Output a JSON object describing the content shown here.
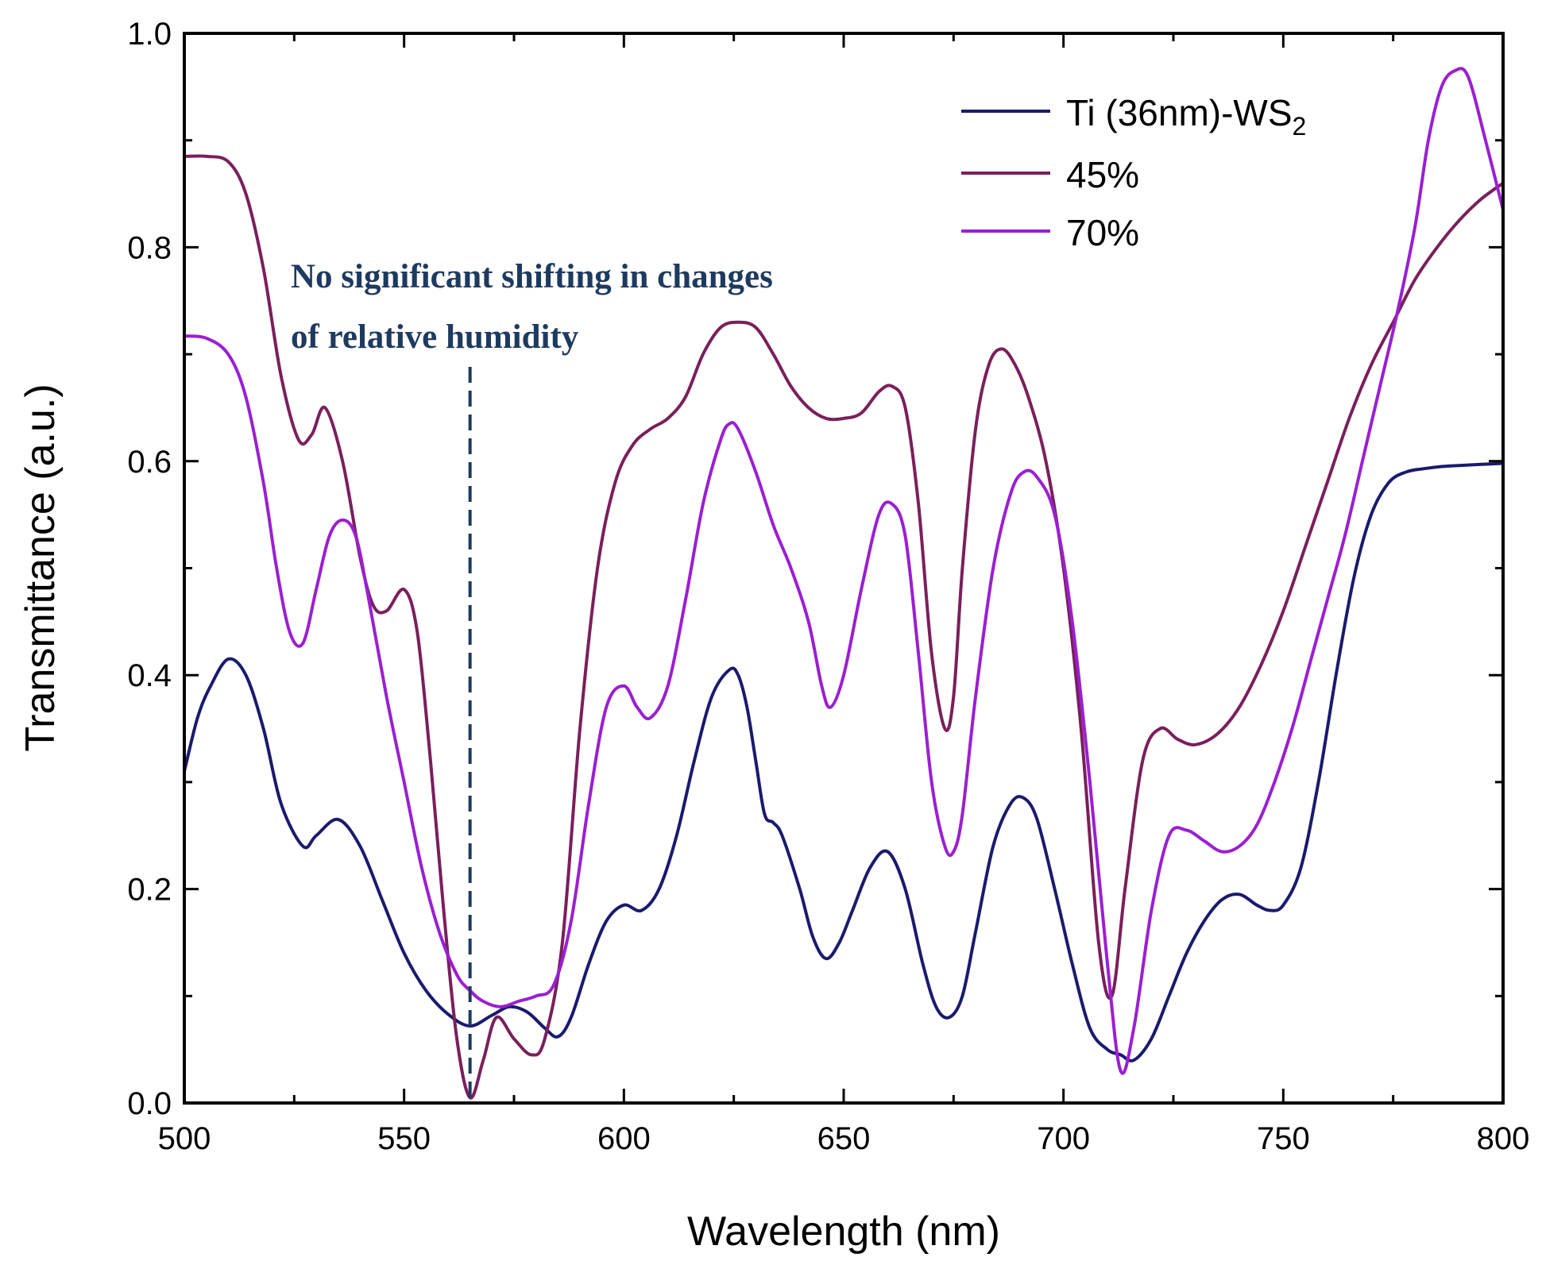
{
  "chart_data": {
    "type": "line",
    "xlabel": "Wavelength (nm)",
    "ylabel": "Transmittance (a.u.)",
    "xlim": [
      500,
      800
    ],
    "ylim": [
      0.0,
      1.0
    ],
    "xticks": [
      500,
      550,
      600,
      650,
      700,
      750,
      800
    ],
    "yticks": [
      0.0,
      0.2,
      0.4,
      0.6,
      0.8,
      1.0
    ],
    "xtick_labels": [
      "500",
      "550",
      "600",
      "650",
      "700",
      "750",
      "800"
    ],
    "ytick_labels": [
      "0.0",
      "0.2",
      "0.4",
      "0.6",
      "0.8",
      "1.0"
    ],
    "legend_position": "top-right",
    "annotation": {
      "line1": "No significant shifting in changes",
      "line2": "of relative humidity",
      "x": 565
    },
    "series": [
      {
        "name": "Ti (36nm)-WS",
        "name_sub": "2",
        "color": "#1a1a6e",
        "x": [
          500,
          503,
          506,
          510,
          514,
          518,
          522,
          527,
          530,
          535,
          540,
          545,
          550,
          555,
          560,
          565,
          570,
          574,
          578,
          582,
          585,
          588,
          592,
          596,
          600,
          604,
          608,
          612,
          616,
          620,
          624,
          626,
          628,
          630,
          632,
          634,
          636,
          640,
          643,
          646,
          649,
          652,
          656,
          660,
          664,
          668,
          671,
          674,
          677,
          680,
          684,
          688,
          691,
          694,
          698,
          702,
          706,
          710,
          713,
          716,
          720,
          724,
          728,
          732,
          736,
          740,
          744,
          747,
          750,
          754,
          758,
          762,
          766,
          770,
          774,
          778,
          782,
          786,
          790,
          795,
          800
        ],
        "values": [
          0.31,
          0.36,
          0.39,
          0.415,
          0.4,
          0.35,
          0.28,
          0.24,
          0.25,
          0.265,
          0.24,
          0.19,
          0.14,
          0.105,
          0.083,
          0.072,
          0.082,
          0.09,
          0.085,
          0.07,
          0.062,
          0.08,
          0.13,
          0.17,
          0.185,
          0.18,
          0.2,
          0.25,
          0.32,
          0.38,
          0.405,
          0.4,
          0.37,
          0.32,
          0.27,
          0.262,
          0.25,
          0.2,
          0.155,
          0.135,
          0.15,
          0.18,
          0.22,
          0.235,
          0.2,
          0.13,
          0.09,
          0.08,
          0.1,
          0.16,
          0.24,
          0.28,
          0.285,
          0.265,
          0.2,
          0.13,
          0.07,
          0.05,
          0.045,
          0.04,
          0.06,
          0.1,
          0.14,
          0.17,
          0.19,
          0.195,
          0.185,
          0.18,
          0.185,
          0.22,
          0.3,
          0.4,
          0.49,
          0.55,
          0.58,
          0.59,
          0.593,
          0.595,
          0.596,
          0.597,
          0.598
        ]
      },
      {
        "name": "45%",
        "color": "#7a1f5c",
        "x": [
          500,
          505,
          510,
          514,
          518,
          522,
          526,
          529,
          532,
          536,
          540,
          543,
          546,
          550,
          553,
          556,
          559,
          562,
          565,
          568,
          571,
          575,
          579,
          582,
          586,
          590,
          594,
          598,
          602,
          606,
          610,
          614,
          618,
          622,
          626,
          630,
          634,
          638,
          642,
          646,
          650,
          654,
          658,
          661,
          664,
          667,
          670,
          673,
          675,
          677,
          680,
          683,
          686,
          689,
          692,
          696,
          700,
          704,
          708,
          711,
          714,
          718,
          722,
          726,
          730,
          735,
          740,
          745,
          750,
          755,
          760,
          765,
          770,
          775,
          780,
          785,
          790,
          795,
          800
        ],
        "values": [
          0.885,
          0.885,
          0.88,
          0.85,
          0.78,
          0.68,
          0.62,
          0.625,
          0.65,
          0.6,
          0.51,
          0.465,
          0.46,
          0.48,
          0.44,
          0.32,
          0.18,
          0.06,
          0.005,
          0.04,
          0.08,
          0.06,
          0.045,
          0.06,
          0.15,
          0.35,
          0.5,
          0.58,
          0.615,
          0.63,
          0.64,
          0.66,
          0.7,
          0.725,
          0.73,
          0.725,
          0.7,
          0.67,
          0.65,
          0.64,
          0.64,
          0.645,
          0.665,
          0.67,
          0.65,
          0.56,
          0.42,
          0.35,
          0.38,
          0.5,
          0.63,
          0.69,
          0.705,
          0.69,
          0.66,
          0.6,
          0.5,
          0.35,
          0.15,
          0.1,
          0.2,
          0.32,
          0.35,
          0.34,
          0.335,
          0.345,
          0.37,
          0.41,
          0.46,
          0.52,
          0.58,
          0.64,
          0.69,
          0.73,
          0.77,
          0.8,
          0.825,
          0.845,
          0.86
        ]
      },
      {
        "name": "70%",
        "color": "#9b1fd1",
        "x": [
          500,
          505,
          510,
          514,
          518,
          521,
          524,
          527,
          530,
          533,
          536,
          539,
          542,
          546,
          550,
          554,
          558,
          562,
          565,
          568,
          572,
          576,
          580,
          584,
          588,
          592,
          596,
          600,
          603,
          606,
          610,
          614,
          618,
          622,
          624,
          626,
          630,
          634,
          638,
          642,
          645,
          647,
          650,
          654,
          658,
          661,
          664,
          667,
          670,
          673,
          675,
          677,
          680,
          684,
          688,
          691,
          694,
          698,
          702,
          706,
          710,
          713,
          716,
          720,
          724,
          728,
          732,
          736,
          740,
          744,
          748,
          752,
          756,
          760,
          764,
          768,
          772,
          776,
          780,
          783,
          786,
          789,
          792,
          796,
          800
        ],
        "values": [
          0.717,
          0.715,
          0.7,
          0.66,
          0.58,
          0.5,
          0.44,
          0.43,
          0.48,
          0.53,
          0.545,
          0.53,
          0.47,
          0.38,
          0.3,
          0.22,
          0.16,
          0.12,
          0.105,
          0.095,
          0.09,
          0.095,
          0.1,
          0.11,
          0.17,
          0.28,
          0.37,
          0.39,
          0.37,
          0.36,
          0.39,
          0.47,
          0.56,
          0.62,
          0.635,
          0.63,
          0.59,
          0.54,
          0.5,
          0.45,
          0.39,
          0.37,
          0.4,
          0.48,
          0.55,
          0.56,
          0.53,
          0.42,
          0.3,
          0.24,
          0.235,
          0.27,
          0.38,
          0.5,
          0.57,
          0.59,
          0.585,
          0.55,
          0.45,
          0.3,
          0.13,
          0.03,
          0.07,
          0.18,
          0.25,
          0.255,
          0.245,
          0.235,
          0.24,
          0.26,
          0.3,
          0.35,
          0.41,
          0.47,
          0.53,
          0.6,
          0.67,
          0.74,
          0.82,
          0.9,
          0.95,
          0.965,
          0.96,
          0.9,
          0.835
        ]
      }
    ]
  }
}
